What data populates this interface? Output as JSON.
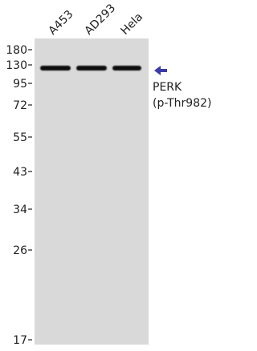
{
  "lanes": [
    "A453",
    "AD293",
    "Hela"
  ],
  "markers": [
    "180",
    "130",
    "95",
    "72",
    "55",
    "43",
    "34",
    "26",
    "17"
  ],
  "target": {
    "name": "PERK",
    "detail": "(p-Thr982)"
  }
}
